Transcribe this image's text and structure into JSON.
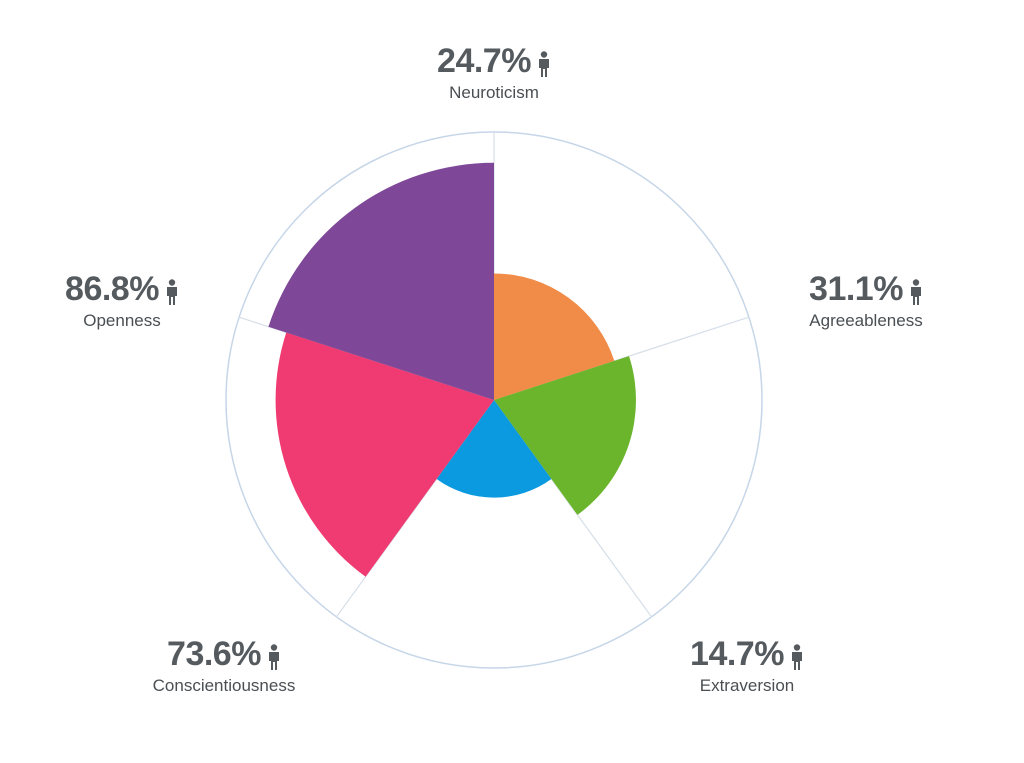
{
  "chart_data": {
    "type": "polar-area",
    "unit": "%",
    "max": 100,
    "categories": [
      "Neuroticism",
      "Agreeableness",
      "Extraversion",
      "Conscientiousness",
      "Openness"
    ],
    "values": [
      24.7,
      31.1,
      14.7,
      73.6,
      86.8
    ],
    "value_labels": [
      "24.7%",
      "31.1%",
      "14.7%",
      "73.6%",
      "86.8%"
    ],
    "colors": [
      "#f08c48",
      "#6ab52c",
      "#0b9ae0",
      "#ef3b71",
      "#7f4797"
    ],
    "grid": {
      "ring_color": "#c6d6e8",
      "spoke_color": "#d6dfe8"
    },
    "icon": "person-icon"
  }
}
